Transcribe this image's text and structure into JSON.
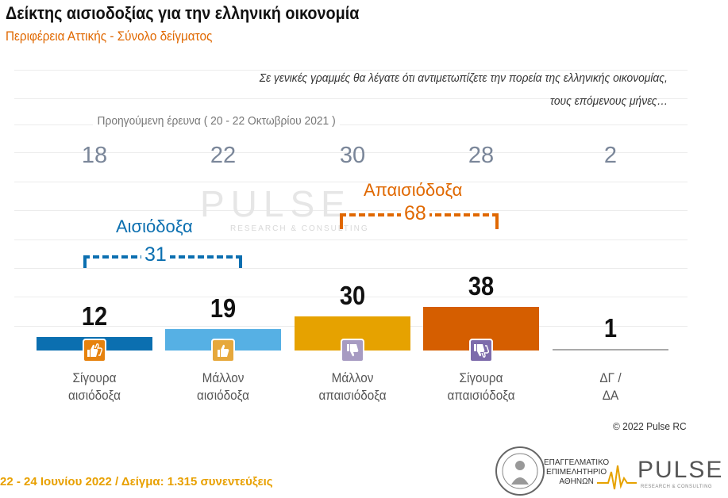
{
  "title": "Δείκτης αισιοδοξίας για την ελληνική οικονομία",
  "subtitle": "Περιφέρεια Αττικής - Σύνολο δείγματος",
  "question_line1": "Σε γενικές γραμμές θα λέγατε ότι αντιμετωπίζετε την πορεία  της ελληνικής οικονομίας,",
  "question_line2": "τους επόμενους μήνες…",
  "previous_label": "Προηγούμενη έρευνα  ( 20 - 22 Οκτωβρίου 2021 )",
  "chart_data": {
    "type": "bar",
    "title": "Δείκτης αισιοδοξίας για την ελληνική οικονομία",
    "categories": [
      "Σίγουρα αισιόδοξα",
      "Μάλλον αισιόδοξα",
      "Μάλλον απαισιόδοξα",
      "Σίγουρα απαισιόδοξα",
      "ΔΓ / ΔΑ"
    ],
    "category_lines": [
      [
        "Σίγουρα",
        "αισιόδοξα"
      ],
      [
        "Μάλλον",
        "αισιόδοξα"
      ],
      [
        "Μάλλον",
        "απαισιόδοξα"
      ],
      [
        "Σίγουρα",
        "απαισιόδοξα"
      ],
      [
        "ΔΓ /",
        "ΔΑ"
      ]
    ],
    "series": [
      {
        "name": "22 - 24 Ιουνίου 2022",
        "values": [
          12,
          19,
          30,
          38,
          1
        ]
      },
      {
        "name": "Προηγούμενη έρευνα ( 20 - 22 Οκτωβρίου 2021 )",
        "values": [
          18,
          22,
          30,
          28,
          2
        ]
      }
    ],
    "colors": [
      "#0b6fb0",
      "#56b0e4",
      "#e6a200",
      "#d55e00",
      "#aaaaaa"
    ],
    "icon_colors": [
      "#e6820e",
      "#e6a83c",
      "#a79bc2",
      "#7d6bab"
    ],
    "ylim": [
      0,
      100
    ],
    "groups": [
      {
        "label": "Αισιόδοξα",
        "total": "31",
        "color": "#0b6fb0"
      },
      {
        "label": "Απαισιόδοξα",
        "total": "68",
        "color": "#e06800"
      }
    ]
  },
  "icons": [
    "thumbs-up-double-icon",
    "thumbs-up-icon",
    "thumbs-down-icon",
    "thumbs-down-double-icon"
  ],
  "copyright": "© 2022 Pulse RC",
  "footer": "22 - 24  Ιουνίου  2022  /  Δείγμα:  1.315  συνεντεύξεις",
  "logo_chamber_line1": "ΕΠΑΓΓΕΛΜΑΤΙΚΟ",
  "logo_chamber_line2": "ΕΠΙΜΕΛΗΤΗΡΙΟ",
  "logo_chamber_line3": "ΑΘΗΝΩΝ",
  "logo_pulse": "PULSE",
  "logo_pulse_sub": "RESEARCH & CONSULTING"
}
